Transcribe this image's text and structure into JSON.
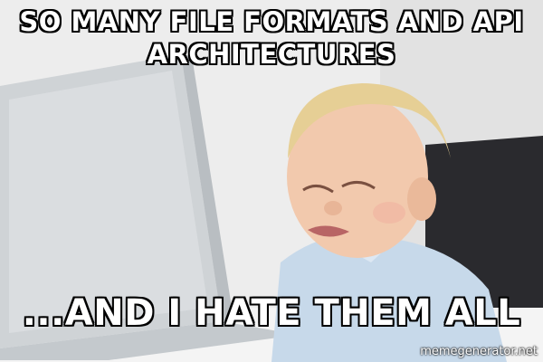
{
  "meme": {
    "top_text": "SO MANY FILE FORMATS AND API ARCHITECTURES",
    "bottom_text": "...AND I HATE THEM ALL",
    "watermark": "memegenerator.net"
  },
  "colors": {
    "background": "#e9e9e9",
    "laptop": "#cfd3d6",
    "skin": "#f2c9ad",
    "hair": "#e6cf95",
    "shirt": "#c7d9ea",
    "chair": "#2a2a2e"
  },
  "icons": {
    "photo": "crying-toddler-at-laptop"
  }
}
